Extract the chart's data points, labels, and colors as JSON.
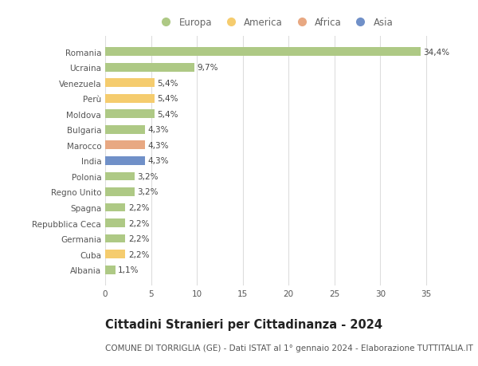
{
  "categories": [
    "Romania",
    "Ucraina",
    "Venezuela",
    "Perù",
    "Moldova",
    "Bulgaria",
    "Marocco",
    "India",
    "Polonia",
    "Regno Unito",
    "Spagna",
    "Repubblica Ceca",
    "Germania",
    "Cuba",
    "Albania"
  ],
  "values": [
    34.4,
    9.7,
    5.4,
    5.4,
    5.4,
    4.3,
    4.3,
    4.3,
    3.2,
    3.2,
    2.2,
    2.2,
    2.2,
    2.2,
    1.1
  ],
  "labels": [
    "34,4%",
    "9,7%",
    "5,4%",
    "5,4%",
    "5,4%",
    "4,3%",
    "4,3%",
    "4,3%",
    "3,2%",
    "3,2%",
    "2,2%",
    "2,2%",
    "2,2%",
    "2,2%",
    "1,1%"
  ],
  "colors": [
    "#aec985",
    "#aec985",
    "#f5cc6e",
    "#f5cc6e",
    "#aec985",
    "#aec985",
    "#e8a882",
    "#7090c8",
    "#aec985",
    "#aec985",
    "#aec985",
    "#aec985",
    "#aec985",
    "#f5cc6e",
    "#aec985"
  ],
  "legend": [
    {
      "label": "Europa",
      "color": "#aec985"
    },
    {
      "label": "America",
      "color": "#f5cc6e"
    },
    {
      "label": "Africa",
      "color": "#e8a882"
    },
    {
      "label": "Asia",
      "color": "#7090c8"
    }
  ],
  "xlim": [
    0,
    37
  ],
  "xticks": [
    0,
    5,
    10,
    15,
    20,
    25,
    30,
    35
  ],
  "title": "Cittadini Stranieri per Cittadinanza - 2024",
  "subtitle": "COMUNE DI TORRIGLIA (GE) - Dati ISTAT al 1° gennaio 2024 - Elaborazione TUTTITALIA.IT",
  "background_color": "#ffffff",
  "bar_height": 0.55,
  "grid_color": "#dddddd",
  "title_fontsize": 10.5,
  "subtitle_fontsize": 7.5,
  "label_fontsize": 7.5,
  "tick_fontsize": 7.5,
  "legend_fontsize": 8.5
}
